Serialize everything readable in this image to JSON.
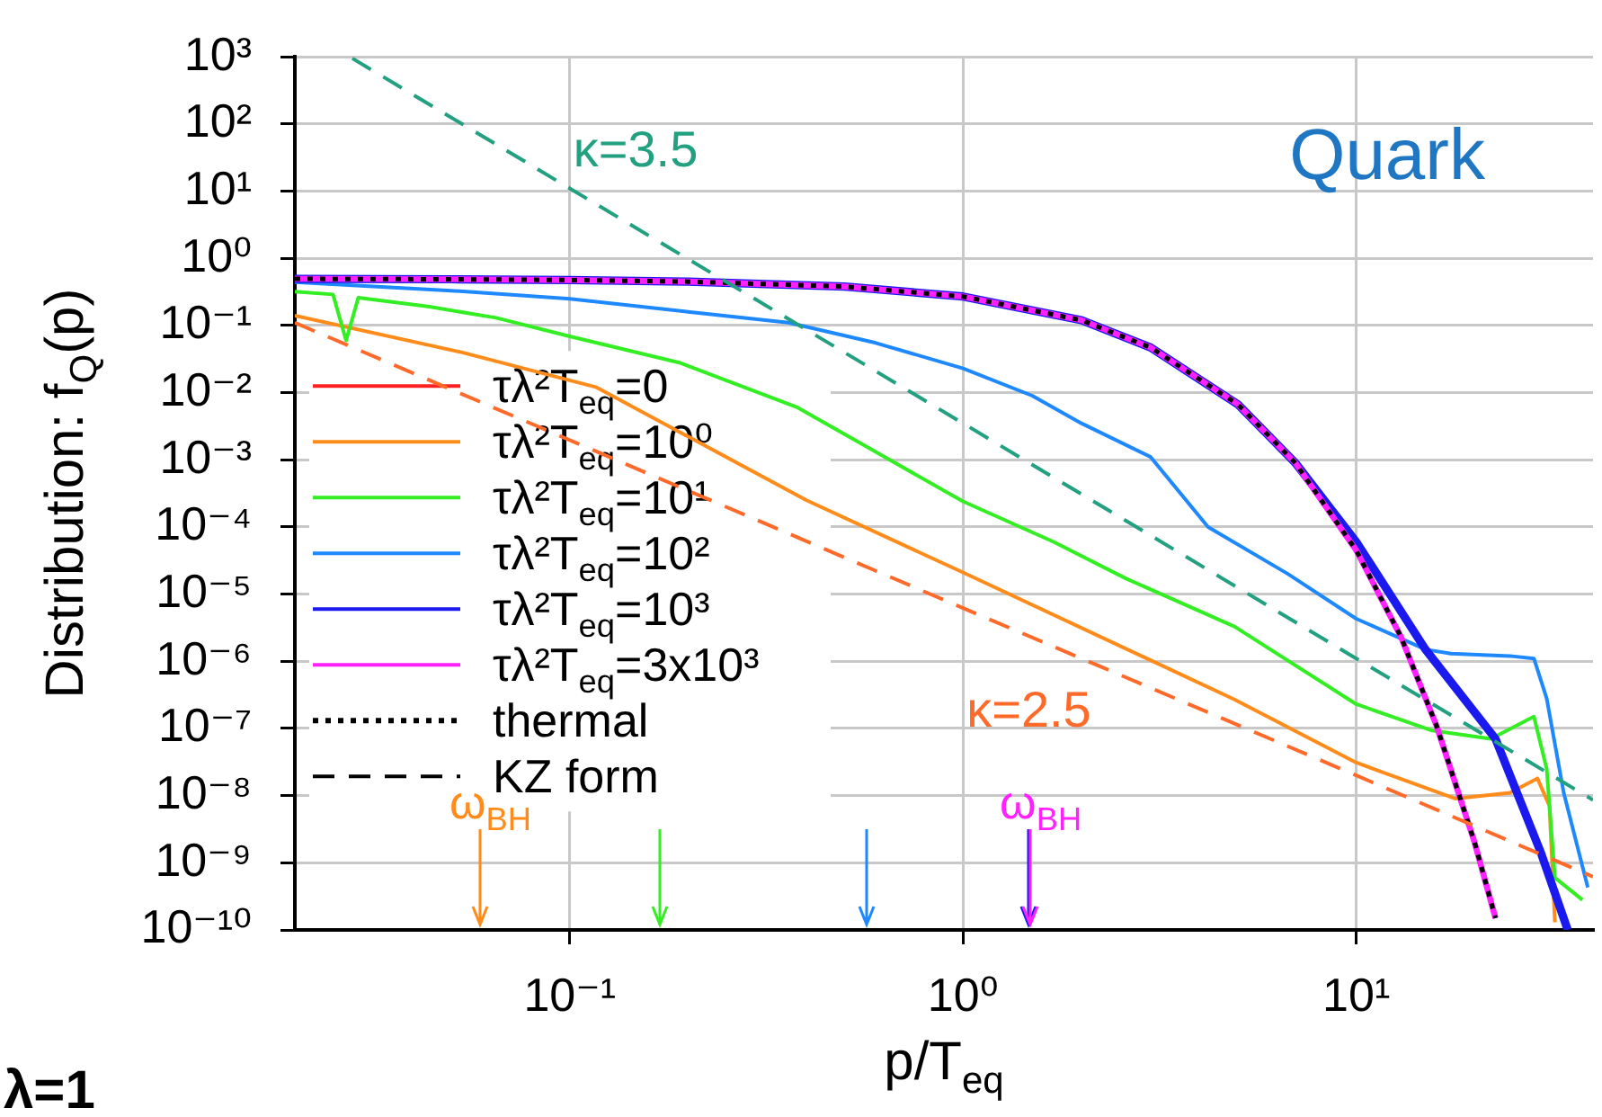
{
  "chart_data": {
    "type": "line",
    "xlabel": "p/T$_{eq}$",
    "ylabel": "Distribution: f$_{Q}$(p)",
    "log": "xy",
    "grid": true,
    "legend": "left",
    "marker": "none",
    "xlim": [
      0.02,
      40
    ],
    "xticks": [
      {
        "value": 0.1,
        "label": "10⁻¹"
      },
      {
        "value": 1,
        "label": "10⁰"
      },
      {
        "value": 10,
        "label": "10¹"
      }
    ],
    "ylim": [
      1e-10,
      1000
    ],
    "yticks": [
      {
        "value": 1e-10,
        "label": "10⁻¹⁰"
      },
      {
        "value": 1e-09,
        "label": "10⁻⁹"
      },
      {
        "value": 1e-08,
        "label": "10⁻⁸"
      },
      {
        "value": 1e-07,
        "label": "10⁻⁷"
      },
      {
        "value": 1e-06,
        "label": "10⁻⁶"
      },
      {
        "value": 1e-05,
        "label": "10⁻⁵"
      },
      {
        "value": 0.0001,
        "label": "10⁻⁴"
      },
      {
        "value": 0.001,
        "label": "10⁻³"
      },
      {
        "value": 0.01,
        "label": "10⁻²"
      },
      {
        "value": 0.1,
        "label": "10⁻¹"
      },
      {
        "value": 1,
        "label": "10⁰"
      },
      {
        "value": 10,
        "label": "10¹"
      },
      {
        "value": 100,
        "label": "10²"
      },
      {
        "value": 1000,
        "label": "10³"
      }
    ],
    "series": [
      {
        "name": "τλ²T$_{eq}$=0",
        "color": "#ff2020",
        "line_style": "solid"
      },
      {
        "name": "τλ²T$_{eq}$=10⁰",
        "color": "#ff8c1a",
        "line_style": "solid",
        "x": [
          0.02,
          0.053,
          0.117,
          0.4,
          1,
          4.9,
          10,
          17.9,
          24.6,
          28.9,
          31,
          32
        ],
        "values": [
          0.14,
          0.04,
          0.012,
          0.00025,
          2.1e-05,
          2.7e-07,
          3.1e-08,
          9e-09,
          1.1e-08,
          1.8e-08,
          7e-09,
          1.3e-10
        ]
      },
      {
        "name": "τλ²T$_{eq}$=10¹",
        "color": "#33ee22",
        "line_style": "solid",
        "x": [
          0.02,
          0.025,
          0.027,
          0.029,
          0.044,
          0.065,
          0.1,
          0.19,
          0.38,
          1,
          1.7,
          2.6,
          4.9,
          10,
          15.6,
          22,
          28.3,
          30.5,
          32,
          37.6
        ],
        "values": [
          0.32,
          0.29,
          0.06,
          0.26,
          0.19,
          0.13,
          0.069,
          0.028,
          0.006,
          0.00024,
          6e-05,
          1.7e-05,
          3.3e-06,
          2.3e-07,
          9.3e-08,
          7e-08,
          1.5e-07,
          2.5e-08,
          6e-10,
          2.8e-10
        ]
      },
      {
        "name": "τλ²T$_{eq}$=10²",
        "color": "#1e88ff",
        "line_style": "solid",
        "x": [
          0.02,
          0.05,
          0.1,
          0.2,
          0.36,
          0.6,
          1,
          1.5,
          2,
          3,
          4.2,
          6.7,
          10,
          15,
          17.4,
          24.6,
          28.3,
          30.5,
          33.7,
          38.8
        ],
        "values": [
          0.44,
          0.33,
          0.25,
          0.16,
          0.11,
          0.055,
          0.023,
          0.009,
          0.0035,
          0.0011,
          0.0001,
          2e-05,
          4.3e-06,
          1.5e-06,
          1.3e-06,
          1.2e-06,
          1.1e-06,
          2.8e-07,
          1.1e-08,
          4.3e-10
        ]
      },
      {
        "name": "τλ²T$_{eq}$=10³",
        "color": "#1a1aee",
        "line_style": "solid",
        "x": [
          0.02,
          0.05,
          0.1,
          0.2,
          0.5,
          1,
          2,
          3,
          5,
          7,
          10,
          15,
          22.6,
          29.5,
          34.5
        ],
        "values": [
          0.495,
          0.488,
          0.475,
          0.45,
          0.38,
          0.27,
          0.12,
          0.047,
          0.0067,
          0.0009,
          6e-05,
          1.5e-06,
          7e-08,
          1.4e-09,
          1e-10
        ]
      },
      {
        "name": "τλ²T$_{eq}$=3x10³",
        "color": "#ff22ff",
        "line_style": "solid",
        "x": [
          0.02,
          0.05,
          0.1,
          0.2,
          0.5,
          1,
          2,
          3,
          5,
          7,
          10,
          13,
          16,
          20,
          22.6
        ],
        "values": [
          0.495,
          0.488,
          0.475,
          0.45,
          0.38,
          0.27,
          0.12,
          0.047,
          0.0067,
          0.0009,
          4.5e-05,
          2.3e-06,
          1.1e-07,
          2e-09,
          1.5e-10
        ]
      },
      {
        "name": "thermal",
        "color": "#000000",
        "line_style": "dotted",
        "x": [
          0.02,
          0.05,
          0.1,
          0.2,
          0.5,
          1,
          2,
          3,
          5,
          7,
          10,
          13,
          16,
          20,
          22.6
        ],
        "values": [
          0.495,
          0.488,
          0.475,
          0.45,
          0.38,
          0.27,
          0.12,
          0.047,
          0.0067,
          0.0009,
          4.5e-05,
          2.3e-06,
          1.1e-07,
          2e-09,
          1.5e-10
        ]
      },
      {
        "name": "KZ form",
        "color": "#000000",
        "line_style": "dashed"
      },
      {
        "name": "κ=3.5",
        "color": "#22a080",
        "line_style": "dashed",
        "x": [
          0.028,
          0.1,
          1,
          10,
          40
        ],
        "values": [
          950,
          11,
          0.0035,
          1.1e-06,
          8.6e-09
        ]
      },
      {
        "name": "κ=2.5",
        "color": "#ff6a2a",
        "line_style": "dashed",
        "x": [
          0.02,
          1,
          10,
          40
        ],
        "values": [
          0.11,
          6.2e-06,
          2e-08,
          6.2e-10
        ]
      }
    ],
    "ref_lines": [
      {
        "axis": "x",
        "value": 0.059,
        "label": "ω$_{BH}$",
        "color": "#ff8c1a"
      },
      {
        "axis": "x",
        "value": 0.17,
        "color": "#33ee22"
      },
      {
        "axis": "x",
        "value": 0.57,
        "color": "#1e88ff"
      },
      {
        "axis": "x",
        "value": 1.46,
        "color": "#1a1aee"
      },
      {
        "axis": "x",
        "value": 1.48,
        "label": "ω$_{BH}$",
        "color": "#ff22ff"
      }
    ],
    "annotations": [
      "Quark",
      "λ=1"
    ]
  }
}
